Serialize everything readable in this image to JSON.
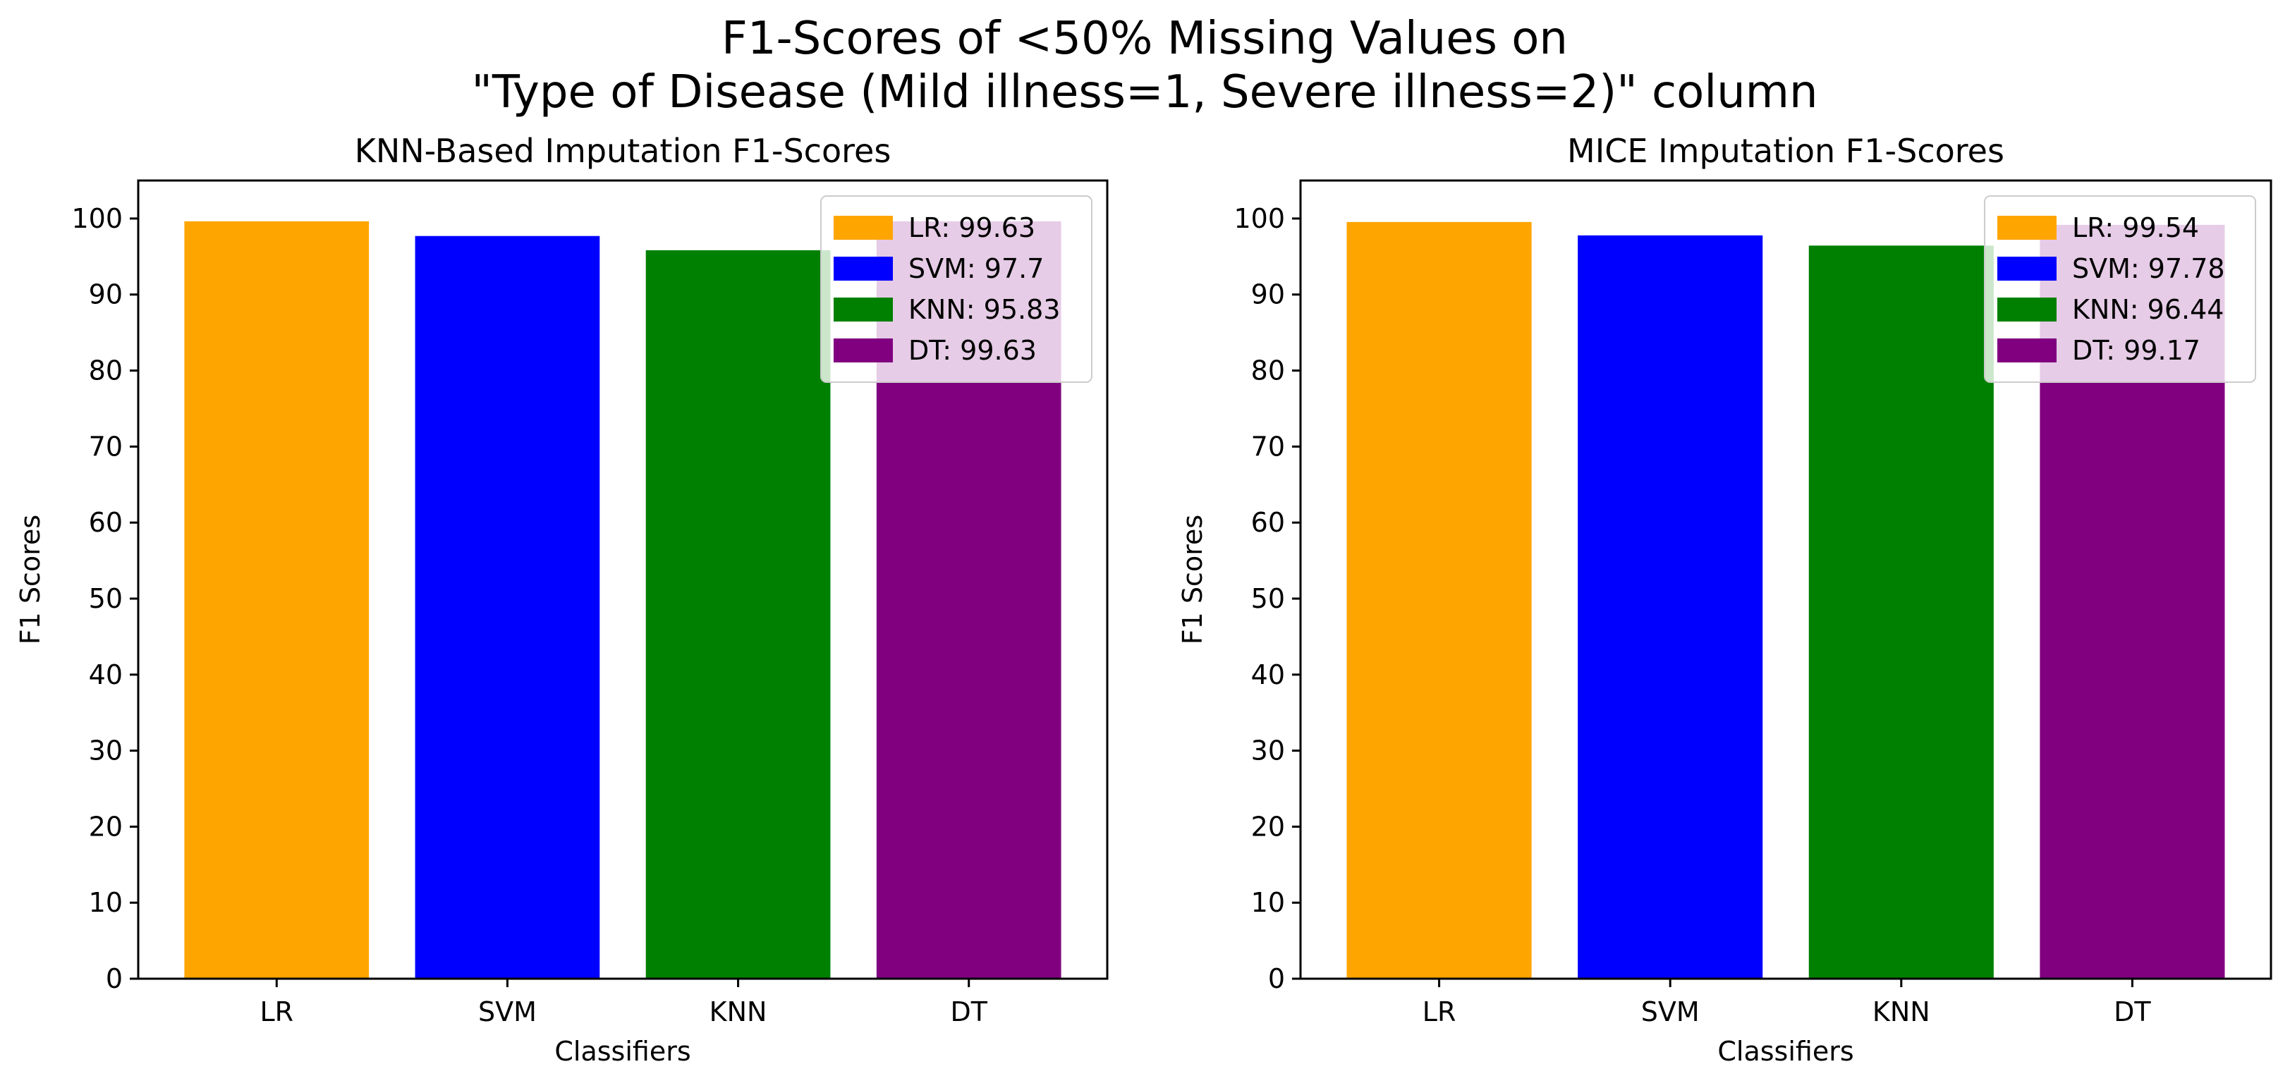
{
  "title_lines": [
    "F1-Scores of <50% Missing Values on",
    "\"Type of Disease (Mild illness=1, Severe illness=2)\" column"
  ],
  "colors": {
    "LR": "#ffa500",
    "SVM": "#0000ff",
    "KNN": "#008000",
    "DT": "#800080"
  },
  "chart_data": [
    {
      "type": "bar",
      "title": "KNN-Based Imputation F1-Scores",
      "xlabel": "Classifiers",
      "ylabel": "F1 Scores",
      "categories": [
        "LR",
        "SVM",
        "KNN",
        "DT"
      ],
      "values": [
        99.63,
        97.7,
        95.83,
        99.63
      ],
      "ylim": [
        0,
        105
      ],
      "yticks": [
        0,
        10,
        20,
        30,
        40,
        50,
        60,
        70,
        80,
        90,
        100
      ],
      "grid": false,
      "legend_position": "top-right",
      "legend": [
        "LR: 99.63",
        "SVM: 97.7",
        "KNN: 95.83",
        "DT: 99.63"
      ]
    },
    {
      "type": "bar",
      "title": "MICE Imputation F1-Scores",
      "xlabel": "Classifiers",
      "ylabel": "F1 Scores",
      "categories": [
        "LR",
        "SVM",
        "KNN",
        "DT"
      ],
      "values": [
        99.54,
        97.78,
        96.44,
        99.17
      ],
      "ylim": [
        0,
        105
      ],
      "yticks": [
        0,
        10,
        20,
        30,
        40,
        50,
        60,
        70,
        80,
        90,
        100
      ],
      "grid": false,
      "legend_position": "top-right",
      "legend": [
        "LR: 99.54",
        "SVM: 97.78",
        "KNN: 96.44",
        "DT: 99.17"
      ]
    }
  ]
}
